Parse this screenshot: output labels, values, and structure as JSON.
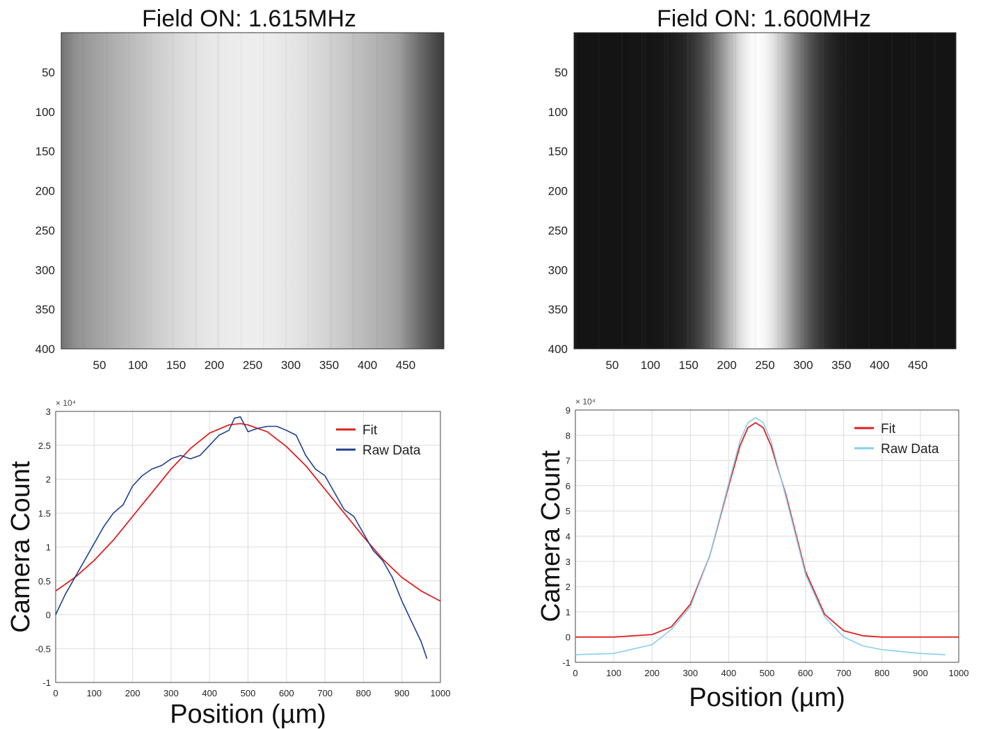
{
  "panels": [
    {
      "title": "Field ON: 1.615MHz",
      "image": {
        "type": "heatmap",
        "colormap": "gray",
        "x_ticks": [
          50,
          100,
          150,
          200,
          250,
          300,
          350,
          400,
          450
        ],
        "y_ticks": [
          50,
          100,
          150,
          200,
          250,
          300,
          350,
          400
        ],
        "xlim": [
          0,
          500
        ],
        "ylim": [
          0,
          400
        ],
        "profile": {
          "background": 0.25,
          "peak": 0.93,
          "center": 243,
          "width": 260,
          "shape": "gaussian",
          "right_edge_dark": true
        }
      },
      "profile_chart": {
        "type": "line",
        "exponent_label": "× 10⁴",
        "xlabel": "Position (µm)",
        "ylabel": "Camera Count",
        "xlim": [
          0,
          1000
        ],
        "ylim": [
          -1,
          3
        ],
        "x_ticks": [
          0,
          100,
          200,
          300,
          400,
          500,
          600,
          700,
          800,
          900,
          1000
        ],
        "y_ticks": [
          -1,
          -0.5,
          0,
          0.5,
          1,
          1.5,
          2,
          2.5,
          3
        ],
        "grid": true,
        "legend_position": "top-right",
        "series": [
          {
            "name": "Fit",
            "color": "#e02020",
            "x": [
              0,
              50,
              100,
              150,
              200,
              250,
              300,
              350,
              400,
              450,
              480,
              500,
              550,
              600,
              650,
              700,
              750,
              800,
              850,
              900,
              950,
              1000
            ],
            "y": [
              0.35,
              0.55,
              0.8,
              1.1,
              1.45,
              1.8,
              2.15,
              2.45,
              2.68,
              2.8,
              2.82,
              2.8,
              2.7,
              2.48,
              2.2,
              1.85,
              1.5,
              1.15,
              0.82,
              0.55,
              0.35,
              0.2
            ]
          },
          {
            "name": "Raw Data",
            "color": "#1f3f8f",
            "x": [
              0,
              25,
              50,
              75,
              100,
              125,
              150,
              175,
              200,
              225,
              250,
              275,
              300,
              325,
              350,
              375,
              400,
              425,
              450,
              465,
              480,
              500,
              525,
              550,
              575,
              600,
              625,
              650,
              675,
              700,
              725,
              750,
              775,
              800,
              825,
              850,
              875,
              900,
              925,
              950,
              965
            ],
            "y": [
              0,
              0.3,
              0.55,
              0.8,
              1.05,
              1.3,
              1.5,
              1.62,
              1.9,
              2.05,
              2.15,
              2.2,
              2.3,
              2.35,
              2.3,
              2.35,
              2.5,
              2.65,
              2.72,
              2.9,
              2.92,
              2.7,
              2.75,
              2.78,
              2.78,
              2.72,
              2.65,
              2.35,
              2.15,
              2.05,
              1.8,
              1.55,
              1.45,
              1.2,
              0.95,
              0.8,
              0.55,
              0.2,
              -0.1,
              -0.4,
              -0.65
            ]
          }
        ]
      }
    },
    {
      "title": "Field ON: 1.600MHz",
      "image": {
        "type": "heatmap",
        "colormap": "gray",
        "x_ticks": [
          50,
          100,
          150,
          200,
          250,
          300,
          350,
          400,
          450
        ],
        "y_ticks": [
          50,
          100,
          150,
          200,
          250,
          300,
          350,
          400
        ],
        "xlim": [
          0,
          500
        ],
        "ylim": [
          0,
          400
        ],
        "profile": {
          "background": 0.08,
          "peak": 0.99,
          "center": 240,
          "width": 60,
          "shape": "gaussian",
          "right_edge_dark": false
        }
      },
      "profile_chart": {
        "type": "line",
        "exponent_label": "× 10⁴",
        "xlabel": "Position (µm)",
        "ylabel": "Camera Count",
        "xlim": [
          0,
          1000
        ],
        "ylim": [
          -1,
          9
        ],
        "x_ticks": [
          0,
          100,
          200,
          300,
          400,
          500,
          600,
          700,
          800,
          900,
          1000
        ],
        "y_ticks": [
          -1,
          0,
          1,
          2,
          3,
          4,
          5,
          6,
          7,
          8,
          9
        ],
        "grid": true,
        "legend_position": "top-right",
        "series": [
          {
            "name": "Fit",
            "color": "#e02020",
            "x": [
              0,
              100,
              200,
              250,
              300,
              350,
              400,
              430,
              450,
              470,
              490,
              510,
              550,
              600,
              650,
              700,
              750,
              800,
              900,
              1000
            ],
            "y": [
              0,
              0,
              0.1,
              0.4,
              1.3,
              3.2,
              6.0,
              7.6,
              8.3,
              8.5,
              8.3,
              7.6,
              5.6,
              2.6,
              0.9,
              0.25,
              0.05,
              0,
              0,
              0
            ]
          },
          {
            "name": "Raw Data",
            "color": "#87ceeb",
            "x": [
              0,
              100,
              200,
              250,
              300,
              350,
              400,
              430,
              450,
              470,
              490,
              510,
              550,
              600,
              650,
              700,
              750,
              800,
              900,
              965
            ],
            "y": [
              -0.7,
              -0.65,
              -0.3,
              0.3,
              1.2,
              3.2,
              6.1,
              7.8,
              8.5,
              8.7,
              8.5,
              7.8,
              5.5,
              2.5,
              0.8,
              0.0,
              -0.35,
              -0.5,
              -0.65,
              -0.7
            ]
          }
        ]
      }
    }
  ]
}
